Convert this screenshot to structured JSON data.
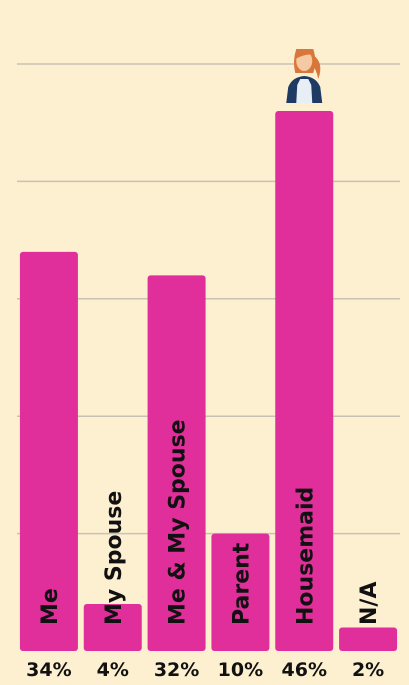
{
  "chart_data": {
    "type": "bar",
    "orientation": "vertical",
    "categories": [
      "Me",
      "My Spouse",
      "Me & My Spouse",
      "Parent",
      "Housemaid",
      "N/A"
    ],
    "values": [
      34,
      4,
      32,
      10,
      46,
      2
    ],
    "value_labels": [
      "34%",
      "4%",
      "32%",
      "10%",
      "46%",
      "2%"
    ],
    "ylim": [
      0,
      50
    ],
    "grid": true,
    "bar_color": "#e02e9a",
    "gridline_color": "#c9c2b4",
    "background": "#fdf0d0",
    "icon_above_bar": {
      "category": "Housemaid",
      "icon": "housemaid-icon"
    }
  }
}
